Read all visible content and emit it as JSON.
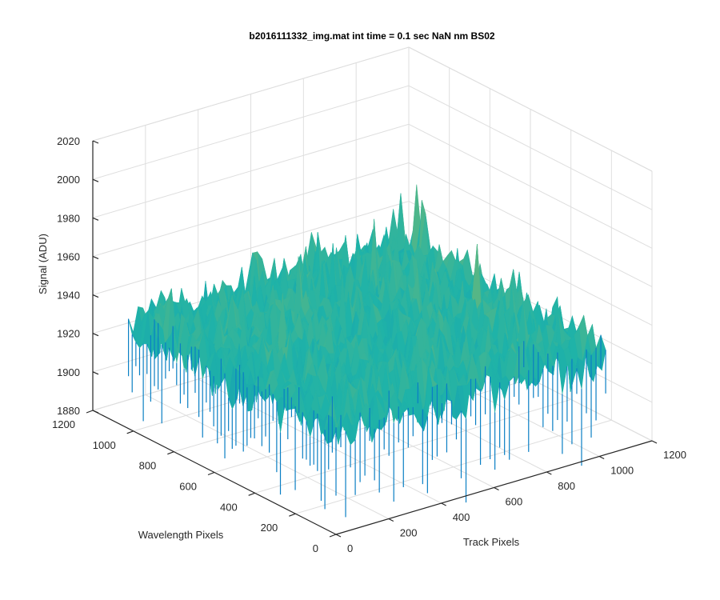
{
  "chart_data": {
    "type": "surface",
    "title": "b2016111332_img.mat int time = 0.1 sec  NaN nm BS02",
    "xlabel": "Track Pixels",
    "ylabel": "Wavelength Pixels",
    "zlabel": "Signal (ADU)",
    "xlim": [
      0,
      1200
    ],
    "ylim": [
      0,
      1200
    ],
    "zlim": [
      1880,
      2020
    ],
    "xticks": [
      "0",
      "200",
      "400",
      "600",
      "800",
      "1000",
      "1200"
    ],
    "yticks": [
      "0",
      "200",
      "400",
      "600",
      "800",
      "1000",
      "1200"
    ],
    "zticks": [
      "1880",
      "1900",
      "1920",
      "1940",
      "1960",
      "1980",
      "2000",
      "2020"
    ],
    "surface_extent": {
      "x": [
        0,
        1024
      ],
      "y": [
        0,
        1024
      ]
    },
    "mean_signal": 1935,
    "noise_range": [
      1885,
      1985
    ],
    "colormap": "parula",
    "grid": true,
    "colors": {
      "low": "#0a7fc4",
      "mid": "#1fb3a8",
      "high": "#c9bd3e",
      "axis": "#262626",
      "grid": "#dedede"
    }
  }
}
